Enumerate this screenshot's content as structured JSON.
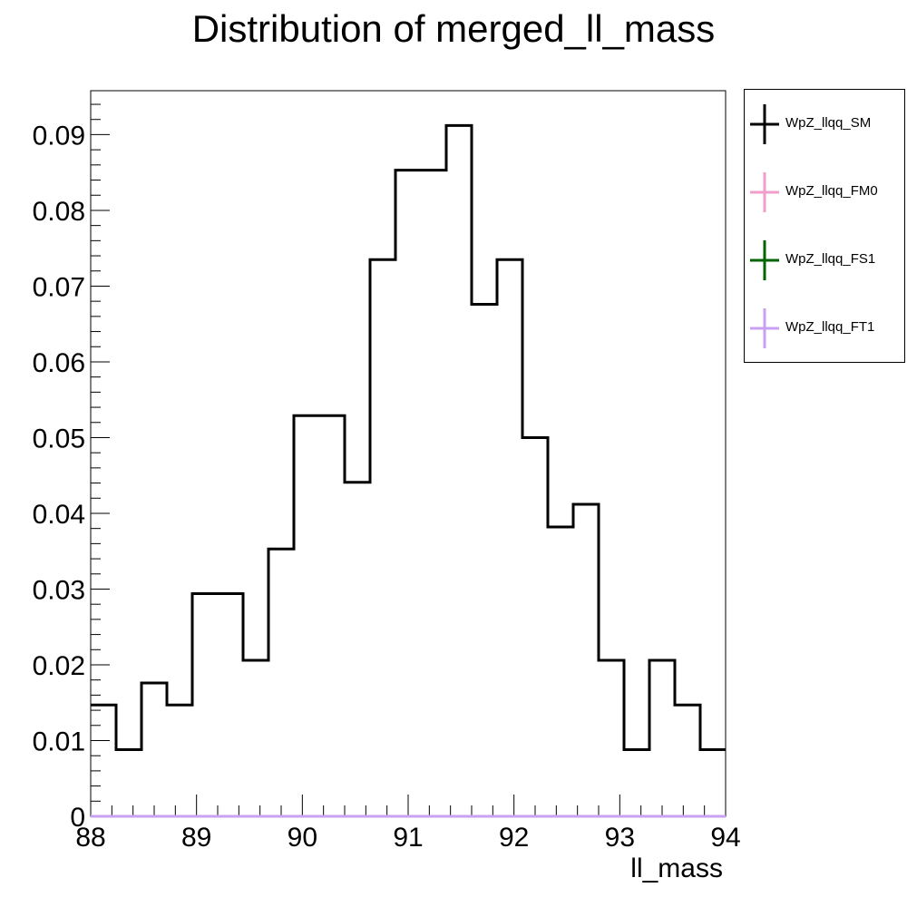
{
  "title": "Distribution of merged_ll_mass",
  "chart_data": {
    "type": "histogram",
    "title": "Distribution of merged_ll_mass",
    "xlabel": "ll_mass",
    "ylabel": "",
    "xlim": [
      88,
      94
    ],
    "ylim": [
      0,
      0.0958
    ],
    "grid": false,
    "legend_position": "right, outside plot",
    "bin_edges": [
      88.0,
      88.24,
      88.48,
      88.72,
      88.96,
      89.2,
      89.44,
      89.68,
      89.92,
      90.16,
      90.4,
      90.64,
      90.88,
      91.12,
      91.36,
      91.6,
      91.84,
      92.08,
      92.32,
      92.56,
      92.8,
      93.04,
      93.28,
      93.52,
      93.76,
      94.0
    ],
    "series": [
      {
        "name": "WpZ_llqq_SM",
        "color": "#000000",
        "values": [
          0.0147,
          0.0088,
          0.0176,
          0.0147,
          0.0294,
          0.0294,
          0.0206,
          0.0353,
          0.0529,
          0.0529,
          0.0441,
          0.0735,
          0.0853,
          0.0853,
          0.0912,
          0.0676,
          0.0735,
          0.05,
          0.0382,
          0.0412,
          0.0206,
          0.0088,
          0.0206,
          0.0147,
          0.0088
        ]
      },
      {
        "name": "WpZ_llqq_FM0",
        "color": "#f29ecb",
        "values": [
          0,
          0,
          0,
          0,
          0,
          0,
          0,
          0,
          0,
          0,
          0,
          0,
          0,
          0,
          0,
          0,
          0,
          0,
          0,
          0,
          0,
          0,
          0,
          0,
          0
        ]
      },
      {
        "name": "WpZ_llqq_FS1",
        "color": "#006400",
        "values": [
          0,
          0,
          0,
          0,
          0,
          0,
          0,
          0,
          0,
          0,
          0,
          0,
          0,
          0,
          0,
          0,
          0,
          0,
          0,
          0,
          0,
          0,
          0,
          0,
          0
        ]
      },
      {
        "name": "WpZ_llqq_FT1",
        "color": "#c8a2f0",
        "values": [
          0,
          0,
          0,
          0,
          0,
          0,
          0,
          0,
          0,
          0,
          0,
          0,
          0,
          0,
          0,
          0,
          0,
          0,
          0,
          0,
          0,
          0,
          0,
          0,
          0
        ]
      }
    ],
    "x_ticks": [
      88,
      89,
      90,
      91,
      92,
      93,
      94
    ],
    "x_tick_labels": [
      "88",
      "89",
      "90",
      "91",
      "92",
      "93",
      "94"
    ],
    "y_ticks": [
      0,
      0.01,
      0.02,
      0.03,
      0.04,
      0.05,
      0.06,
      0.07,
      0.08,
      0.09
    ],
    "y_tick_labels": [
      "0",
      "0.01",
      "0.02",
      "0.03",
      "0.04",
      "0.05",
      "0.06",
      "0.07",
      "0.08",
      "0.09"
    ]
  }
}
